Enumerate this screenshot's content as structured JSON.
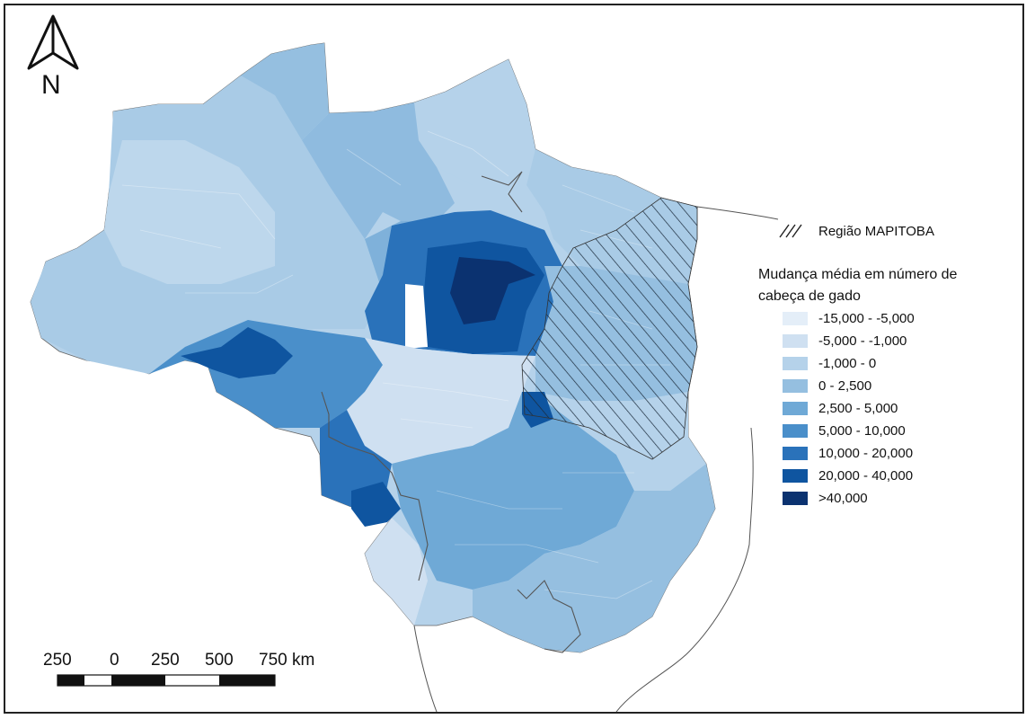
{
  "mapitoba_label": "Região MAPITOBA",
  "legend": {
    "title_line1": "Mudança média em número de",
    "title_line2": "cabeça de gado",
    "items": [
      {
        "label": "-15,000 - -5,000",
        "color": "#e4eef8"
      },
      {
        "label": "-5,000 - -1,000",
        "color": "#cfe0f1"
      },
      {
        "label": "-1,000 - 0",
        "color": "#b5d2ea"
      },
      {
        "label": "0 - 2,500",
        "color": "#95bfe0"
      },
      {
        "label": "2,500 - 5,000",
        "color": "#6fa9d6"
      },
      {
        "label": "5,000 - 10,000",
        "color": "#4a8fca"
      },
      {
        "label": "10,000 - 20,000",
        "color": "#2a72ba"
      },
      {
        "label": "20,000 - 40,000",
        "color": "#0f55a0"
      },
      {
        "label": ">40,000",
        "color": "#0b3270"
      }
    ]
  },
  "north_arrow": {
    "label": "N",
    "icon": "north-arrow-icon"
  },
  "scale_bar": {
    "labels": [
      "250",
      "0",
      "250",
      "500",
      "750 km"
    ]
  }
}
